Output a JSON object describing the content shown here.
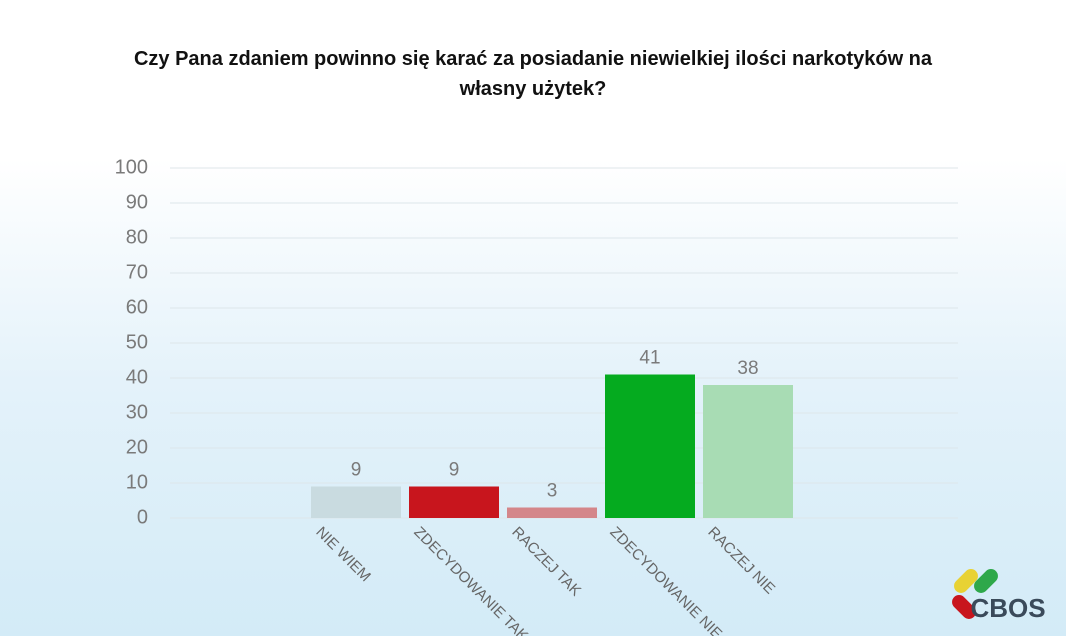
{
  "chart_data": {
    "type": "bar",
    "title": "Czy Pana zdaniem powinno się karać za posiadanie niewielkiej ilości narkotyków na własny użytek?",
    "categories": [
      "NIE WIEM",
      "ZDECYDOWANIE TAK",
      "RACZEJ TAK",
      "ZDECYDOWANIE NIE",
      "RACZEJ NIE"
    ],
    "values": [
      9,
      9,
      3,
      41,
      38
    ],
    "colors": [
      "#c9dbe0",
      "#c8151d",
      "#d4868a",
      "#05ab1f",
      "#a8dcb4"
    ],
    "ylim": [
      0,
      100
    ],
    "yticks": [
      0,
      10,
      20,
      30,
      40,
      50,
      60,
      70,
      80,
      90,
      100
    ],
    "grid": true
  },
  "logo": "CBOS"
}
